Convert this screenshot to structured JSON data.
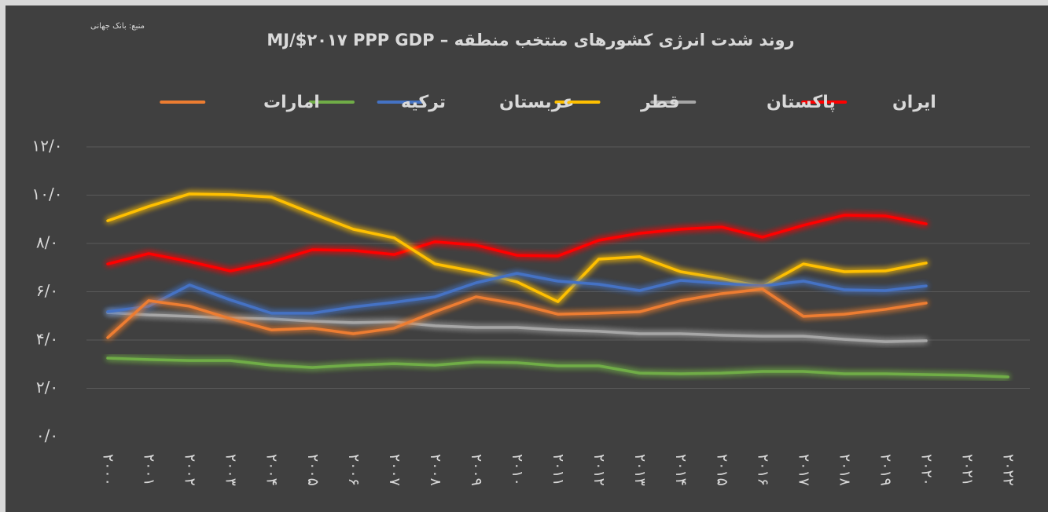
{
  "chart_data": {
    "type": "line",
    "source": "منبع: بانک جهانی",
    "title": "روند شدت انرژی کشورهای منتخب منطقه – MJ/$۲۰۱۷ PPP GDP",
    "categories": [
      "۲۰۰۰",
      "۲۰۰۱",
      "۲۰۰۲",
      "۲۰۰۳",
      "۲۰۰۴",
      "۲۰۰۵",
      "۲۰۰۶",
      "۲۰۰۷",
      "۲۰۰۸",
      "۲۰۰۹",
      "۲۰۱۰",
      "۲۰۱۱",
      "۲۰۱۲",
      "۲۰۱۳",
      "۲۰۱۴",
      "۲۰۱۵",
      "۲۰۱۶",
      "۲۰۱۷",
      "۲۰۱۸",
      "۲۰۱۹",
      "۲۰۲۰",
      "۲۰۲۱",
      "۲۰۲۲"
    ],
    "series": [
      {
        "name": "ایران",
        "color": "#ff0000",
        "values": [
          7.15,
          7.58,
          7.25,
          6.86,
          7.22,
          7.74,
          7.71,
          7.54,
          8.07,
          7.93,
          7.51,
          7.48,
          8.13,
          8.42,
          8.59,
          8.68,
          8.26,
          8.75,
          9.17,
          9.14,
          8.81,
          null,
          null
        ]
      },
      {
        "name": "پاکستان",
        "color": "#a6a6a6",
        "values": [
          5.14,
          5.04,
          4.98,
          4.91,
          4.88,
          4.78,
          4.72,
          4.75,
          4.59,
          4.52,
          4.52,
          4.42,
          4.36,
          4.26,
          4.26,
          4.2,
          4.16,
          4.16,
          4.03,
          3.93,
          3.97,
          null,
          null
        ]
      },
      {
        "name": "قطر",
        "color": "#ffc000",
        "values": [
          8.94,
          9.53,
          10.05,
          10.02,
          9.92,
          9.24,
          8.59,
          8.23,
          7.15,
          6.83,
          6.41,
          5.59,
          7.35,
          7.45,
          6.83,
          6.54,
          6.21,
          7.15,
          6.83,
          6.86,
          7.19,
          null,
          null
        ]
      },
      {
        "name": "عربستان",
        "color": "#4472c4",
        "values": [
          5.17,
          5.4,
          6.28,
          5.66,
          5.11,
          5.11,
          5.37,
          5.56,
          5.79,
          6.37,
          6.76,
          6.44,
          6.31,
          6.05,
          6.47,
          6.34,
          6.24,
          6.44,
          6.08,
          6.05,
          6.24,
          null,
          null
        ]
      },
      {
        "name": "ترکیه",
        "color": "#70ad47",
        "values": [
          3.25,
          3.19,
          3.15,
          3.15,
          2.96,
          2.86,
          2.96,
          3.02,
          2.96,
          3.09,
          3.06,
          2.93,
          2.93,
          2.63,
          2.6,
          2.63,
          2.7,
          2.7,
          2.6,
          2.6,
          2.57,
          2.54,
          2.47
        ]
      },
      {
        "name": "امارات",
        "color": "#ed7d31",
        "values": [
          4.1,
          5.63,
          5.4,
          4.88,
          4.42,
          4.49,
          4.26,
          4.49,
          5.17,
          5.79,
          5.5,
          5.07,
          5.11,
          5.17,
          5.63,
          5.92,
          6.11,
          4.98,
          5.07,
          5.27,
          5.53,
          null,
          null
        ]
      }
    ],
    "ylim": [
      0,
      12
    ],
    "yticks": [
      {
        "value": 0,
        "label": "۰/۰"
      },
      {
        "value": 2,
        "label": "۲/۰"
      },
      {
        "value": 4,
        "label": "۴/۰"
      },
      {
        "value": 6,
        "label": "۶/۰"
      },
      {
        "value": 8,
        "label": "۸/۰"
      },
      {
        "value": 10,
        "label": "۱۰/۰"
      },
      {
        "value": 12,
        "label": "۱۲/۰"
      }
    ],
    "grid": true
  }
}
